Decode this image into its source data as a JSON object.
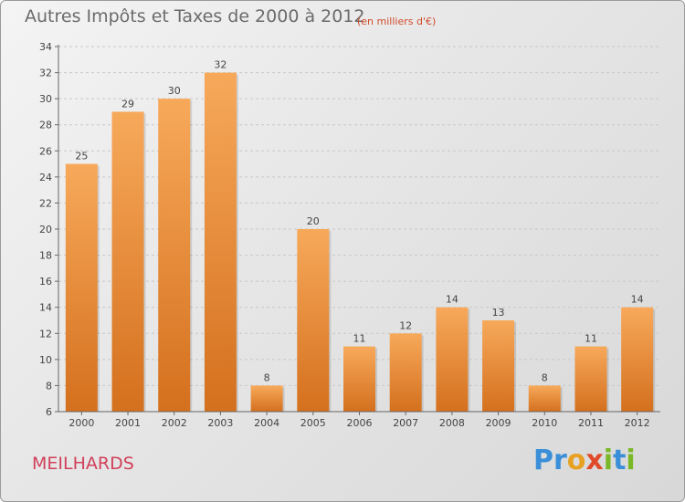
{
  "header": {
    "title": "Autres Impôts et Taxes de 2000 à 2012",
    "subtitle": "(en milliers d'€)"
  },
  "footer": {
    "commune": "MEILHARDS",
    "logo_letters": [
      {
        "char": "P",
        "color": "#3a8fd8"
      },
      {
        "char": "r",
        "color": "#3a8fd8"
      },
      {
        "char": "o",
        "color": "#e8a020"
      },
      {
        "char": "x",
        "color": "#e04a2a"
      },
      {
        "char": "i",
        "color": "#7ab828"
      },
      {
        "char": "t",
        "color": "#3a8fd8"
      },
      {
        "char": "i",
        "color": "#7ab828"
      }
    ]
  },
  "chart_data": {
    "type": "bar",
    "title": "Autres Impôts et Taxes de 2000 à 2012",
    "subtitle": "(en milliers d'€)",
    "categories": [
      "2000",
      "2001",
      "2002",
      "2003",
      "2004",
      "2005",
      "2006",
      "2007",
      "2008",
      "2009",
      "2010",
      "2011",
      "2012"
    ],
    "values": [
      25,
      29,
      30,
      32,
      8,
      20,
      11,
      12,
      14,
      13,
      8,
      11,
      14
    ],
    "ylim": [
      6,
      34
    ],
    "yticks": [
      6,
      8,
      10,
      12,
      14,
      16,
      18,
      20,
      22,
      24,
      26,
      28,
      30,
      32,
      34
    ],
    "grid": true,
    "colors": {
      "bar_top": "#f7a95a",
      "bar_bottom": "#d4701e",
      "grid": "#c8c8c8",
      "axis": "#666666"
    }
  }
}
